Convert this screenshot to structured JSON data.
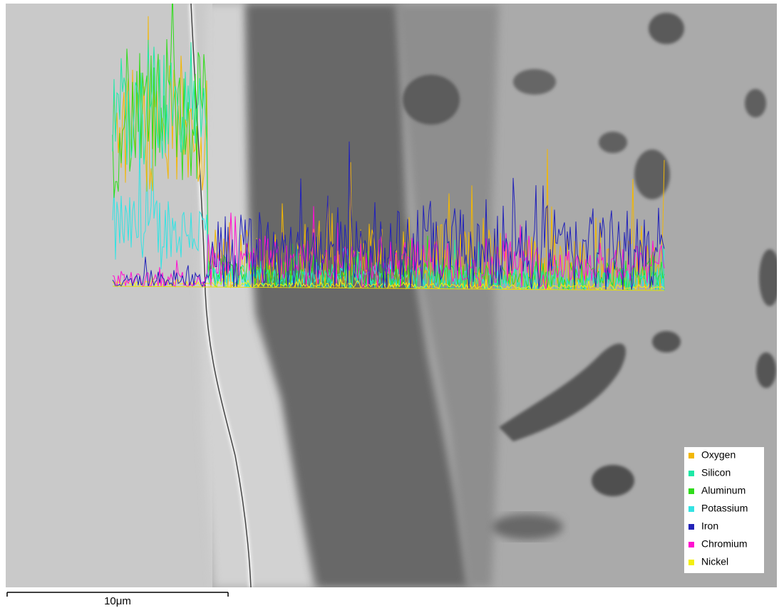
{
  "legend": {
    "items": [
      {
        "name": "Oxygen",
        "color": "#f2b705"
      },
      {
        "name": "Silicon",
        "color": "#1de9a6"
      },
      {
        "name": "Aluminum",
        "color": "#2fdc1a"
      },
      {
        "name": "Potassium",
        "color": "#33e3e3"
      },
      {
        "name": "Iron",
        "color": "#2323b8"
      },
      {
        "name": "Chromium",
        "color": "#ff10d0"
      },
      {
        "name": "Nickel",
        "color": "#f4ef10"
      }
    ]
  },
  "scale_bar": {
    "label": "10μm"
  }
}
